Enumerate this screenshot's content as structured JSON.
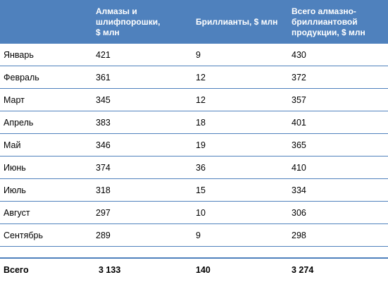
{
  "header": {
    "col0": "",
    "col1": "Алмазы и\nшлифпорошки,\n$ млн",
    "col2": "Бриллианты, $ млн",
    "col3": "Всего алмазно-\nбриллиантовой\nпродукции, $ млн"
  },
  "rows": [
    {
      "month": "Январь",
      "diamonds": "421",
      "brilliants": "9",
      "total": "430"
    },
    {
      "month": "Февраль",
      "diamonds": "361",
      "brilliants": "12",
      "total": "372"
    },
    {
      "month": "Март",
      "diamonds": "345",
      "brilliants": "12",
      "total": "357"
    },
    {
      "month": "Апрель",
      "diamonds": "383",
      "brilliants": "18",
      "total": "401"
    },
    {
      "month": "Май",
      "diamonds": "346",
      "brilliants": "19",
      "total": "365"
    },
    {
      "month": "Июнь",
      "diamonds": "374",
      "brilliants": "36",
      "total": "410"
    },
    {
      "month": "Июль",
      "diamonds": "318",
      "brilliants": "15",
      "total": "334"
    },
    {
      "month": "Август",
      "diamonds": "297",
      "brilliants": "10",
      "total": "306"
    },
    {
      "month": "Сентябрь",
      "diamonds": "289",
      "brilliants": "9",
      "total": "298"
    }
  ],
  "totals": {
    "label": "Всего",
    "diamonds": "3 133",
    "brilliants": "140",
    "total": "3 274"
  }
}
